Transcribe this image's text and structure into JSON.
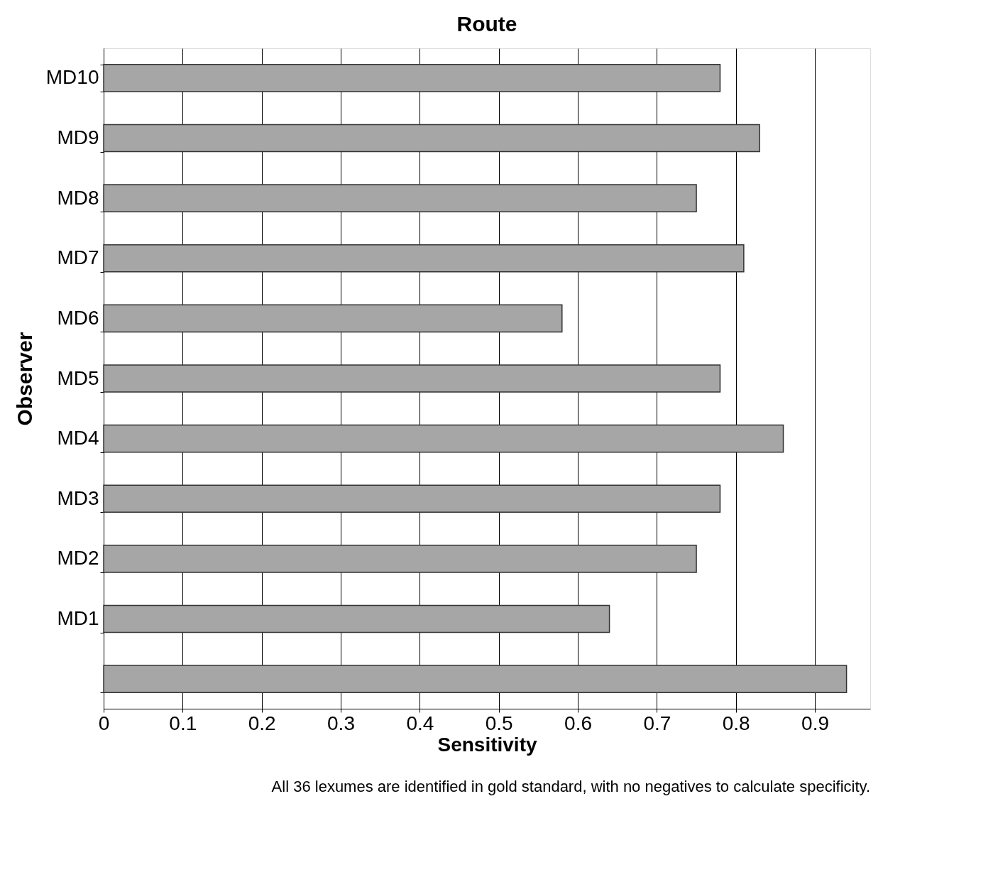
{
  "chart_data": {
    "type": "bar",
    "orientation": "horizontal",
    "title": "Route",
    "xlabel": "Sensitivity",
    "ylabel": "Observer",
    "categories": [
      "MD10",
      "MD9",
      "MD8",
      "MD7",
      "MD6",
      "MD5",
      "MD4",
      "MD3",
      "MD2",
      "MD1",
      null
    ],
    "values": [
      0.78,
      0.83,
      0.75,
      0.81,
      0.58,
      0.78,
      0.86,
      0.78,
      0.75,
      0.64,
      0.94
    ],
    "color": "#a6a6a6",
    "xlim": [
      0,
      0.97
    ],
    "xticks": [
      0,
      0.1,
      0.2,
      0.3,
      0.4,
      0.5,
      0.6,
      0.7,
      0.8,
      0.9
    ],
    "grid": "x",
    "annotations": [
      "All 36 lexumes are identified in gold standard, with no negatives to calculate specificity."
    ]
  }
}
